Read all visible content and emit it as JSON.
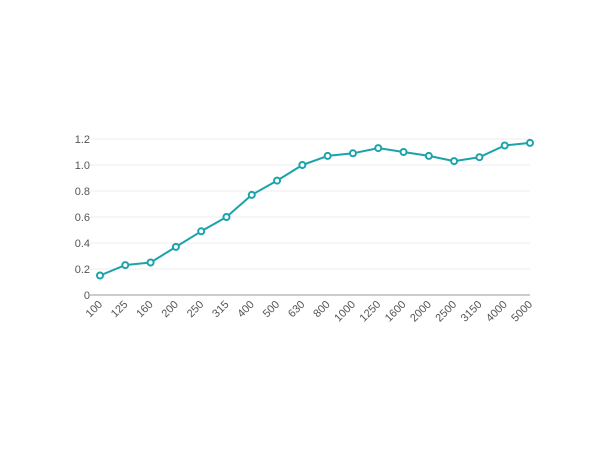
{
  "chart_data": {
    "type": "line",
    "title": "",
    "xlabel": "",
    "ylabel": "",
    "categories": [
      "100",
      "125",
      "160",
      "200",
      "250",
      "315",
      "400",
      "500",
      "630",
      "800",
      "1000",
      "1250",
      "1600",
      "2000",
      "2500",
      "3150",
      "4000",
      "5000"
    ],
    "series": [
      {
        "name": "",
        "color": "#1ba3aa",
        "values": [
          0.15,
          0.23,
          0.25,
          0.37,
          0.49,
          0.6,
          0.77,
          0.88,
          1.0,
          1.07,
          1.09,
          1.13,
          1.1,
          1.07,
          1.03,
          1.06,
          1.15,
          1.17
        ]
      }
    ],
    "ylim": [
      0,
      1.2
    ],
    "yticks": [
      "0",
      "0.2",
      "0.4",
      "0.6",
      "0.8",
      "1.0",
      "1.2"
    ],
    "ytick_values": [
      0,
      0.2,
      0.4,
      0.6,
      0.8,
      1.0,
      1.2
    ],
    "grid": true,
    "legend": "none"
  }
}
